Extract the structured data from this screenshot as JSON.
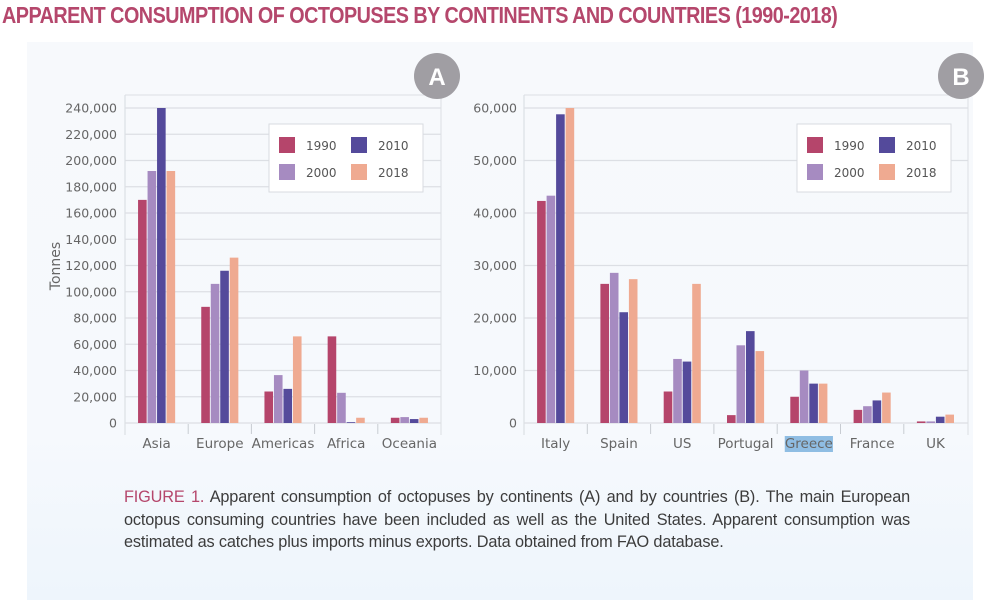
{
  "title": "APPARENT CONSUMPTION OF OCTOPUSES BY CONTINENTS AND COUNTRIES (1990-2018)",
  "caption": {
    "label": "FIGURE 1.",
    "text": "Apparent consumption of octopuses by continents (A) and by countries (B). The main European octopus consuming countries have been included as well as the United States. Apparent consumption was estimated as catches plus imports minus exports. Data obtained from FAO database."
  },
  "colors": {
    "1990": "#b5456b",
    "2000": "#a68bc1",
    "2010": "#544a9b",
    "2018": "#efaa91",
    "title": "#b5476c",
    "badge": "#a09ea3",
    "grid": "#dcdfe4"
  },
  "chart_data": [
    {
      "id": "A",
      "type": "bar",
      "badge": "A",
      "title": "",
      "xlabel": "",
      "ylabel": "Tonnes",
      "ylim": [
        0,
        240000
      ],
      "yticks": [
        0,
        20000,
        40000,
        60000,
        80000,
        100000,
        120000,
        140000,
        160000,
        180000,
        200000,
        220000,
        240000
      ],
      "ytick_labels": [
        "0",
        "20,000",
        "40,000",
        "60,000",
        "80,000",
        "100,000",
        "120,000",
        "140,000",
        "160,000",
        "180,000",
        "200,000",
        "220,000",
        "240,000"
      ],
      "grid": true,
      "legend_position": "top-right",
      "categories": [
        "Asia",
        "Europe",
        "Americas",
        "Africa",
        "Oceania"
      ],
      "series": [
        {
          "name": "1990",
          "values": [
            170000,
            88500,
            24000,
            66000,
            4000
          ]
        },
        {
          "name": "2000",
          "values": [
            192000,
            106000,
            36500,
            23000,
            4500
          ]
        },
        {
          "name": "2010",
          "values": [
            240000,
            116000,
            26000,
            500,
            3000
          ]
        },
        {
          "name": "2018",
          "values": [
            192000,
            126000,
            66000,
            4000,
            4000
          ]
        }
      ]
    },
    {
      "id": "B",
      "type": "bar",
      "badge": "B",
      "title": "",
      "xlabel": "",
      "ylabel": "",
      "ylim": [
        0,
        60000
      ],
      "yticks": [
        0,
        10000,
        20000,
        30000,
        40000,
        50000,
        60000
      ],
      "ytick_labels": [
        "0",
        "10,000",
        "20,000",
        "30,000",
        "40,000",
        "50,000",
        "60,000"
      ],
      "grid": true,
      "legend_position": "top-right",
      "highlighted_category": "Greece",
      "categories": [
        "Italy",
        "Spain",
        "US",
        "Portugal",
        "Greece",
        "France",
        "UK"
      ],
      "series": [
        {
          "name": "1990",
          "values": [
            42300,
            26500,
            6000,
            1500,
            5000,
            2500,
            300
          ]
        },
        {
          "name": "2000",
          "values": [
            43300,
            28600,
            12200,
            14800,
            10000,
            3200,
            300
          ]
        },
        {
          "name": "2010",
          "values": [
            58800,
            21100,
            11700,
            17500,
            7500,
            4300,
            1200
          ]
        },
        {
          "name": "2018",
          "values": [
            60000,
            27400,
            26500,
            13700,
            7500,
            5800,
            1600
          ]
        }
      ]
    }
  ]
}
